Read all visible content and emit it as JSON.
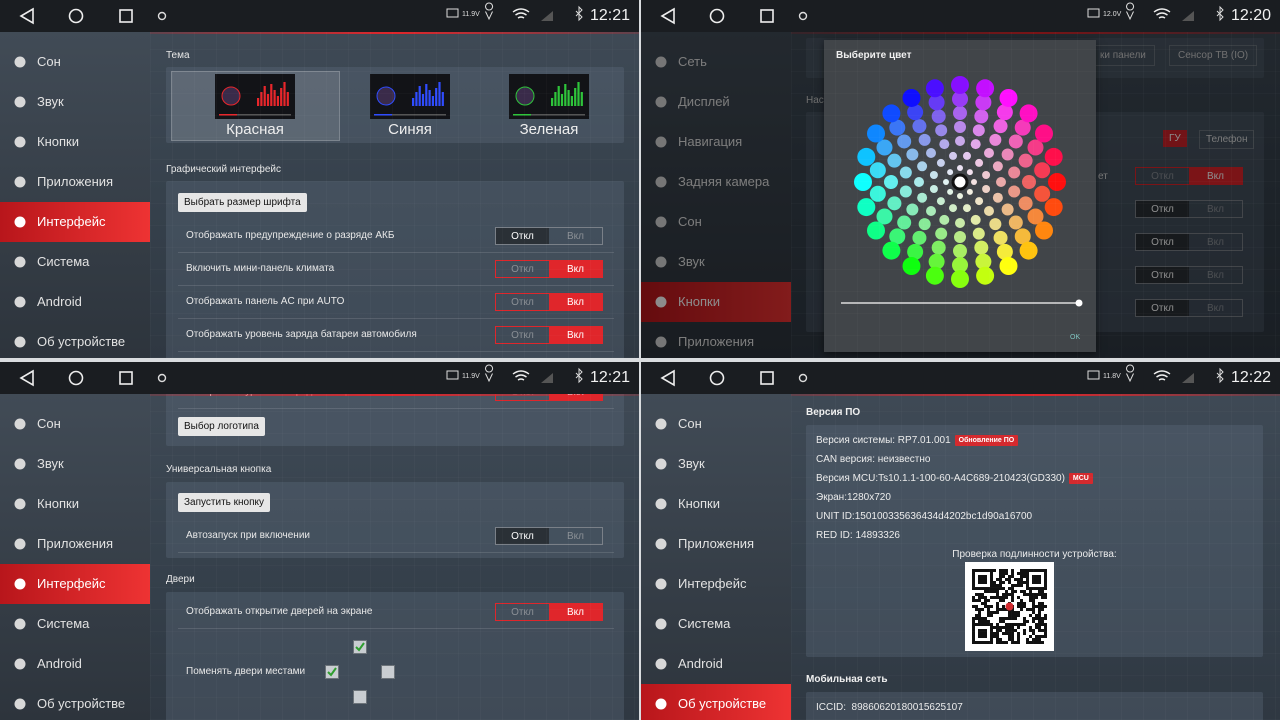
{
  "panels": [
    {
      "status": {
        "voltage": "11.9V",
        "time": "12:21"
      },
      "sidebar": {
        "items": [
          "Сон",
          "Звук",
          "Кнопки",
          "Приложения",
          "Интерфейс",
          "Система",
          "Android",
          "Об устройстве"
        ],
        "active": 4
      },
      "theme": {
        "title": "Тема",
        "options": [
          "Красная",
          "Синяя",
          "Зеленая"
        ],
        "colors": [
          "#e8262b",
          "#2f4cff",
          "#2ec43a"
        ],
        "selected": 0
      },
      "gui": {
        "title": "Графический интерфейс",
        "button": "Выбрать размер шрифта",
        "rows": [
          {
            "label": "Отображать предупреждение о разряде АКБ",
            "off": "Откл",
            "on": "Вкл",
            "state": "off"
          },
          {
            "label": "Включить мини-панель климата",
            "off": "Откл",
            "on": "Вкл",
            "state": "on"
          },
          {
            "label": "Отображать панель AC при AUTO",
            "off": "Откл",
            "on": "Вкл",
            "state": "on"
          },
          {
            "label": "Отображать уровень заряда батареи автомобиля",
            "off": "Откл",
            "on": "Вкл",
            "state": "on"
          }
        ]
      }
    },
    {
      "status": {
        "voltage": "12.0V",
        "time": "12:20"
      },
      "sidebar": {
        "items": [
          "Сеть",
          "Дисплей",
          "Навигация",
          "Задняя камера",
          "Сон",
          "Звук",
          "Кнопки",
          "Приложения"
        ],
        "active": 6
      },
      "background": {
        "buttons": [
          "ки панели",
          "Сенсор ТВ (IO)"
        ],
        "section": "Нас",
        "pair": [
          "ГУ",
          "Телефон"
        ],
        "fragment": "ет",
        "toggles": [
          {
            "off": "Откл",
            "on": "Вкл",
            "state": "on"
          },
          {
            "off": "Откл",
            "on": "Вкл",
            "state": "off"
          },
          {
            "off": "Откл",
            "on": "Вкл",
            "state": "off"
          },
          {
            "off": "Откл",
            "on": "Вкл",
            "state": "off"
          },
          {
            "off": "Откл",
            "on": "Вкл",
            "state": "off"
          }
        ]
      },
      "dialog": {
        "title": "Выберите цвет",
        "ok": "OK"
      }
    },
    {
      "status": {
        "voltage": "11.9V",
        "time": "12:21"
      },
      "sidebar": {
        "items": [
          "Сон",
          "Звук",
          "Кнопки",
          "Приложения",
          "Интерфейс",
          "Система",
          "Android",
          "Об устройстве"
        ],
        "active": 4
      },
      "top_row": {
        "label": "Отображать уровень заряда телефона",
        "off": "Откл",
        "on": "Вкл",
        "state": "on"
      },
      "logo_button": "Выбор логотипа",
      "universal": {
        "title": "Универсальная кнопка",
        "button": "Запустить кнопку",
        "row": {
          "label": "Автозапуск при включении",
          "off": "Откл",
          "on": "Вкл",
          "state": "off"
        }
      },
      "doors": {
        "title": "Двери",
        "row": {
          "label": "Отображать открытие дверей на экране",
          "off": "Откл",
          "on": "Вкл",
          "state": "on"
        },
        "swap_label": "Поменять двери местами",
        "checkboxes": [
          true,
          true,
          false,
          false
        ]
      }
    },
    {
      "status": {
        "voltage": "11.8V",
        "time": "12:22"
      },
      "sidebar": {
        "items": [
          "Сон",
          "Звук",
          "Кнопки",
          "Приложения",
          "Интерфейс",
          "Система",
          "Android",
          "Об устройстве"
        ],
        "active": 7
      },
      "software": {
        "title": "Версия ПО",
        "lines": [
          {
            "text": "Версия системы: RP7.01.001",
            "badge": "Обновление ПО"
          },
          {
            "text": "CAN версия: неизвестно"
          },
          {
            "text": "Версия MCU:Ts10.1.1-100-60-A4C689-210423(GD330)",
            "badge": "MCU"
          },
          {
            "text": "Экран:1280x720"
          },
          {
            "text": "UNIT ID:150100335636434d4202bc1d90a16700"
          },
          {
            "text": "RED ID: 14893326"
          }
        ],
        "verify": "Проверка подлинности устройства:"
      },
      "mobile": {
        "title": "Мобильная сеть",
        "iccid": "ICCID:  89860620180015625107"
      }
    }
  ]
}
